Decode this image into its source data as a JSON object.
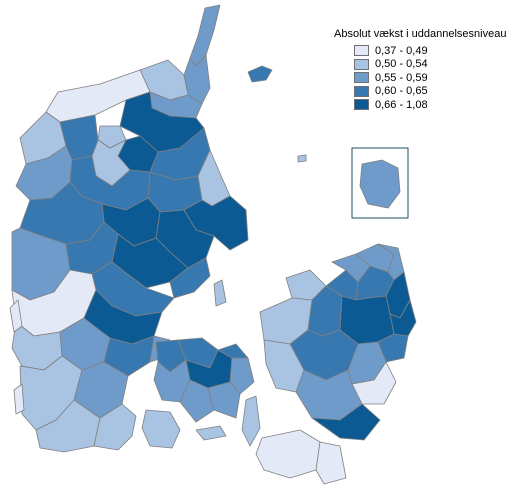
{
  "legend": {
    "title": "Absolut vækst i uddannelsesniveau",
    "classes": [
      {
        "label": "0,37 - 0,49",
        "color": "#e4e9f7"
      },
      {
        "label": "0,50 - 0,54",
        "color": "#a9c3e3"
      },
      {
        "label": "0,55 - 0,59",
        "color": "#6f9bcb"
      },
      {
        "label": "0,60 - 0,65",
        "color": "#3878b1"
      },
      {
        "label": "0,66 - 1,08",
        "color": "#0b5a93"
      }
    ]
  },
  "map": {
    "border_color": "#808080",
    "inset_frame_color": "#1f4e5e"
  }
}
